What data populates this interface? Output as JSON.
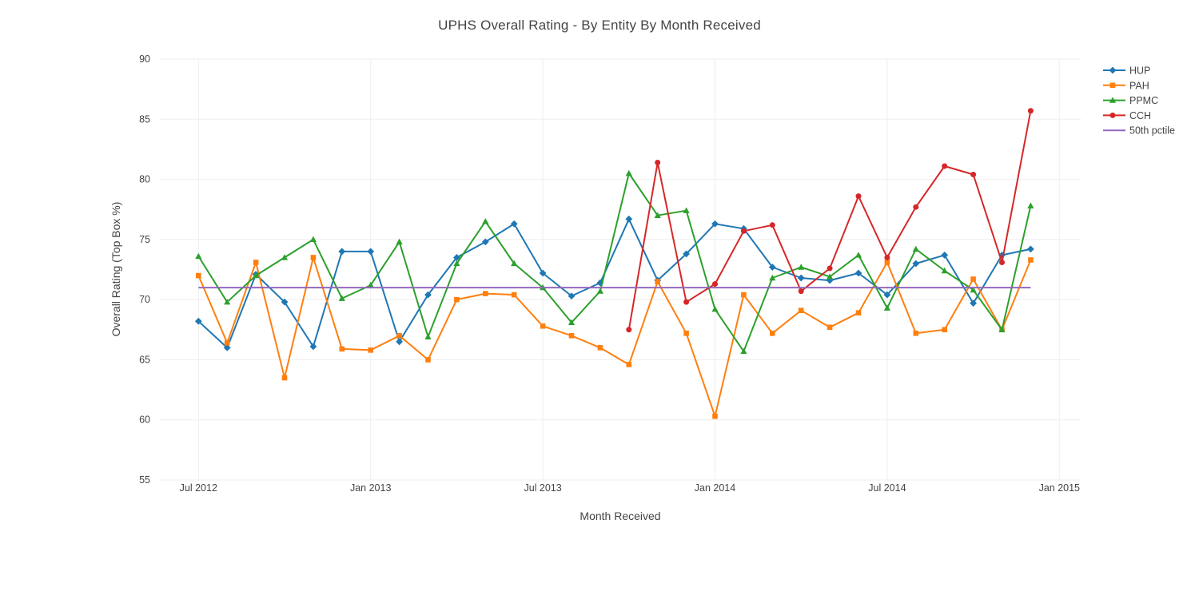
{
  "title": "UPHS Overall Rating - By Entity By Month Received",
  "chart_data": {
    "type": "line",
    "xlabel": "Month Received",
    "ylabel": "Overall Rating (Top Box %)",
    "ylim": [
      55,
      90
    ],
    "yticks": [
      55,
      60,
      65,
      70,
      75,
      80,
      85,
      90
    ],
    "grid": true,
    "legend_position": "top-right",
    "x": [
      "Jul 2012",
      "Aug 2012",
      "Sep 2012",
      "Oct 2012",
      "Nov 2012",
      "Dec 2012",
      "Jan 2013",
      "Feb 2013",
      "Mar 2013",
      "Apr 2013",
      "May 2013",
      "Jun 2013",
      "Jul 2013",
      "Aug 2013",
      "Sep 2013",
      "Oct 2013",
      "Nov 2013",
      "Dec 2013",
      "Jan 2014",
      "Feb 2014",
      "Mar 2014",
      "Apr 2014",
      "May 2014",
      "Jun 2014",
      "Jul 2014",
      "Aug 2014",
      "Sep 2014",
      "Oct 2014",
      "Nov 2014",
      "Dec 2014"
    ],
    "xticks": [
      {
        "index": 0,
        "label": "Jul 2012"
      },
      {
        "index": 6,
        "label": "Jan 2013"
      },
      {
        "index": 12,
        "label": "Jul 2013"
      },
      {
        "index": 18,
        "label": "Jan 2014"
      },
      {
        "index": 24,
        "label": "Jul 2014"
      },
      {
        "index": 30,
        "label": "Jan 2015"
      }
    ],
    "series": [
      {
        "name": "HUP",
        "color": "#1f77b4",
        "marker": "diamond",
        "values": [
          68.2,
          66.0,
          72.1,
          69.8,
          66.1,
          74.0,
          74.0,
          66.5,
          70.4,
          73.5,
          74.8,
          76.3,
          72.2,
          70.3,
          71.4,
          76.7,
          71.6,
          73.8,
          76.3,
          75.9,
          72.7,
          71.8,
          71.6,
          72.2,
          70.4,
          73.0,
          73.7,
          69.7,
          73.7,
          74.2
        ]
      },
      {
        "name": "PAH",
        "color": "#ff7f0e",
        "marker": "square",
        "values": [
          72.0,
          66.4,
          73.1,
          63.5,
          73.5,
          65.9,
          65.8,
          67.0,
          65.0,
          70.0,
          70.5,
          70.4,
          67.8,
          67.0,
          66.0,
          64.6,
          71.5,
          67.2,
          60.3,
          70.4,
          67.2,
          69.1,
          67.7,
          68.9,
          73.1,
          67.2,
          67.5,
          71.7,
          67.5,
          73.3
        ]
      },
      {
        "name": "PPMC",
        "color": "#2ca02c",
        "marker": "triangle",
        "values": [
          73.6,
          69.8,
          72.0,
          73.5,
          75.0,
          70.1,
          71.2,
          74.8,
          66.9,
          73.0,
          76.5,
          73.0,
          71.0,
          68.1,
          70.7,
          80.5,
          77.0,
          77.4,
          69.2,
          65.7,
          71.8,
          72.7,
          71.9,
          73.7,
          69.3,
          74.2,
          72.4,
          70.8,
          67.5,
          77.8
        ]
      },
      {
        "name": "CCH",
        "color": "#d62728",
        "marker": "circle",
        "values": [
          null,
          null,
          null,
          null,
          null,
          null,
          null,
          null,
          null,
          null,
          null,
          null,
          null,
          null,
          null,
          67.5,
          81.4,
          69.8,
          71.3,
          75.7,
          76.2,
          70.7,
          72.6,
          78.6,
          73.5,
          77.7,
          81.1,
          80.4,
          73.1,
          85.7
        ]
      },
      {
        "name": "50th pctile",
        "color": "#9467bd",
        "marker": "none",
        "values": [
          71,
          71,
          71,
          71,
          71,
          71,
          71,
          71,
          71,
          71,
          71,
          71,
          71,
          71,
          71,
          71,
          71,
          71,
          71,
          71,
          71,
          71,
          71,
          71,
          71,
          71,
          71,
          71,
          71,
          71
        ]
      }
    ]
  }
}
